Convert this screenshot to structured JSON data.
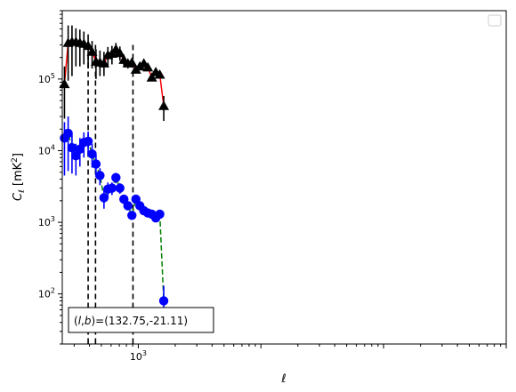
{
  "chart_data": {
    "type": "line",
    "xlabel": "ℓ",
    "ylabel": "C_ℓ [mK²]",
    "xscale": "log",
    "yscale": "log",
    "xlim": [
      240,
      1000000
    ],
    "ylim": [
      20,
      900000
    ],
    "x_tick_labels": [
      {
        "value": 1000,
        "label": "10",
        "sup": "3"
      }
    ],
    "y_tick_labels": [
      {
        "value": 100,
        "label": "10",
        "sup": "2"
      },
      {
        "value": 1000,
        "label": "10",
        "sup": "3"
      },
      {
        "value": 10000,
        "label": "10",
        "sup": "4"
      },
      {
        "value": 100000,
        "label": "10",
        "sup": "5"
      }
    ],
    "vlines": [
      390,
      448,
      905
    ],
    "legend": "top-right, empty",
    "annotation": "(l,b)=(132.75,-21.11)",
    "annotation_text": {
      "prefix": "(",
      "l": "l",
      "comma": ",",
      "b": "b",
      "suffix": ")=(132.75,-21.11)"
    },
    "series": [
      {
        "color": "#ff0000",
        "marker": "triangle",
        "marker_color": "#000000",
        "errbar_color": "#000000",
        "linestyle": "solid",
        "points": [
          {
            "x": 250,
            "y": 85000,
            "ylo": 28000,
            "yhi": 150000
          },
          {
            "x": 268,
            "y": 320000,
            "ylo": 95000,
            "yhi": 560000
          },
          {
            "x": 288,
            "y": 330000,
            "ylo": 110000,
            "yhi": 560000
          },
          {
            "x": 310,
            "y": 330000,
            "ylo": 150000,
            "yhi": 510000
          },
          {
            "x": 334,
            "y": 320000,
            "ylo": 150000,
            "yhi": 490000
          },
          {
            "x": 360,
            "y": 310000,
            "ylo": 160000,
            "yhi": 460000
          },
          {
            "x": 390,
            "y": 290000,
            "ylo": 140000,
            "yhi": 420000
          },
          {
            "x": 420,
            "y": 240000,
            "ylo": 140000,
            "yhi": 340000
          },
          {
            "x": 452,
            "y": 175000,
            "ylo": 100000,
            "yhi": 260000
          },
          {
            "x": 487,
            "y": 170000,
            "ylo": 110000,
            "yhi": 250000
          },
          {
            "x": 525,
            "y": 165000,
            "ylo": 110000,
            "yhi": 240000
          },
          {
            "x": 565,
            "y": 215000,
            "ylo": 145000,
            "yhi": 280000
          },
          {
            "x": 610,
            "y": 225000,
            "ylo": 160000,
            "yhi": 290000
          },
          {
            "x": 657,
            "y": 260000,
            "ylo": 200000,
            "yhi": 320000
          },
          {
            "x": 708,
            "y": 230000,
            "ylo": 180000,
            "yhi": 285000
          },
          {
            "x": 763,
            "y": 185000,
            "ylo": 150000,
            "yhi": 220000
          },
          {
            "x": 823,
            "y": 165000,
            "ylo": 140000,
            "yhi": 190000
          },
          {
            "x": 887,
            "y": 170000,
            "ylo": 145000,
            "yhi": 195000
          },
          {
            "x": 956,
            "y": 135000,
            "ylo": 120000,
            "yhi": 150000
          },
          {
            "x": 1030,
            "y": 150000,
            "ylo": 135000,
            "yhi": 165000
          },
          {
            "x": 1110,
            "y": 165000,
            "ylo": 150000,
            "yhi": 180000
          },
          {
            "x": 1196,
            "y": 145000,
            "ylo": 132000,
            "yhi": 158000
          },
          {
            "x": 1289,
            "y": 105000,
            "ylo": 96000,
            "yhi": 114000
          },
          {
            "x": 1389,
            "y": 125000,
            "ylo": 114000,
            "yhi": 136000
          },
          {
            "x": 1497,
            "y": 115000,
            "ylo": 105000,
            "yhi": 125000
          },
          {
            "x": 1613,
            "y": 42000,
            "ylo": 26000,
            "yhi": 58000
          }
        ]
      },
      {
        "color": "#008000",
        "marker": "circle",
        "marker_color": "#0000ff",
        "errbar_color": "#0000ff",
        "linestyle": "dashed",
        "points": [
          {
            "x": 250,
            "y": 15000,
            "ylo": 4500,
            "yhi": 25000
          },
          {
            "x": 268,
            "y": 17500,
            "ylo": 5200,
            "yhi": 30000
          },
          {
            "x": 288,
            "y": 11000,
            "ylo": 4800,
            "yhi": 17000
          },
          {
            "x": 310,
            "y": 8500,
            "ylo": 4500,
            "yhi": 12500
          },
          {
            "x": 334,
            "y": 10500,
            "ylo": 6000,
            "yhi": 15000
          },
          {
            "x": 360,
            "y": 13000,
            "ylo": 8000,
            "yhi": 18000
          },
          {
            "x": 390,
            "y": 13500,
            "ylo": 8500,
            "yhi": 18500
          },
          {
            "x": 420,
            "y": 9000,
            "ylo": 5800,
            "yhi": 12500
          },
          {
            "x": 452,
            "y": 6500,
            "ylo": 4300,
            "yhi": 8800
          },
          {
            "x": 487,
            "y": 4500,
            "ylo": 3300,
            "yhi": 5700
          },
          {
            "x": 525,
            "y": 2200,
            "ylo": 1550,
            "yhi": 2850
          },
          {
            "x": 565,
            "y": 2900,
            "ylo": 2200,
            "yhi": 3600
          },
          {
            "x": 610,
            "y": 3000,
            "ylo": 2400,
            "yhi": 3600
          },
          {
            "x": 657,
            "y": 4200,
            "ylo": 3500,
            "yhi": 4900
          },
          {
            "x": 708,
            "y": 3000,
            "ylo": 2500,
            "yhi": 3500
          },
          {
            "x": 763,
            "y": 2100,
            "ylo": 1800,
            "yhi": 2400
          },
          {
            "x": 823,
            "y": 1700,
            "ylo": 1500,
            "yhi": 1900
          },
          {
            "x": 887,
            "y": 1250,
            "ylo": 1100,
            "yhi": 1400
          },
          {
            "x": 956,
            "y": 2100,
            "ylo": 1900,
            "yhi": 2300
          },
          {
            "x": 1030,
            "y": 1700,
            "ylo": 1550,
            "yhi": 1850
          },
          {
            "x": 1110,
            "y": 1450,
            "ylo": 1330,
            "yhi": 1570
          },
          {
            "x": 1196,
            "y": 1350,
            "ylo": 1240,
            "yhi": 1460
          },
          {
            "x": 1289,
            "y": 1300,
            "ylo": 1200,
            "yhi": 1400
          },
          {
            "x": 1389,
            "y": 1150,
            "ylo": 1050,
            "yhi": 1250
          },
          {
            "x": 1497,
            "y": 1300,
            "ylo": 1120,
            "yhi": 1480
          },
          {
            "x": 1613,
            "y": 80,
            "ylo": 34,
            "yhi": 130
          }
        ]
      }
    ]
  }
}
